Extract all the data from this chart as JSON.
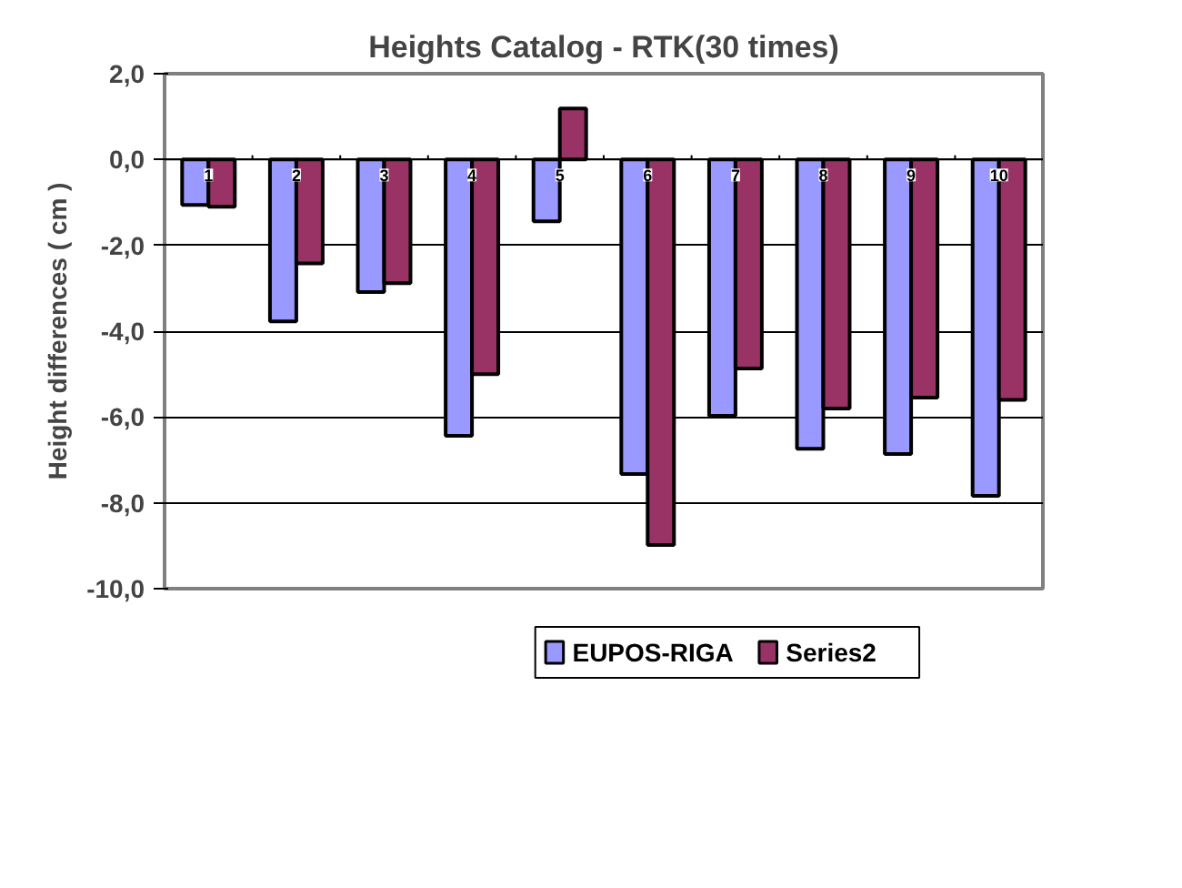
{
  "chart_data": {
    "type": "bar",
    "title": "Heights Catalog - RTK(30 times)",
    "ylabel": "Height differences ( cm )",
    "categories": [
      "1",
      "2",
      "3",
      "4",
      "5",
      "6",
      "7",
      "8",
      "9",
      "10"
    ],
    "series": [
      {
        "name": "EUPOS-RIGA",
        "color": "#9999ff",
        "values": [
          -1.06,
          -3.77,
          -3.09,
          -6.44,
          -1.44,
          -7.33,
          -5.97,
          -6.74,
          -6.86,
          -7.84
        ]
      },
      {
        "name": "Series2",
        "color": "#993366",
        "values": [
          -1.1,
          -2.42,
          -2.88,
          -5.0,
          1.19,
          -8.98,
          -4.87,
          -5.8,
          -5.55,
          -5.6
        ]
      }
    ],
    "ylim": [
      -10,
      2
    ],
    "yticks": [
      {
        "value": -10,
        "label": "-10,0"
      },
      {
        "value": -8,
        "label": "-8,0"
      },
      {
        "value": -6,
        "label": "-6,0"
      },
      {
        "value": -4,
        "label": "-4,0"
      },
      {
        "value": -2,
        "label": "-2,0"
      },
      {
        "value": 0,
        "label": "0,0"
      },
      {
        "value": 2,
        "label": "2,0"
      }
    ],
    "grid": "y",
    "legend": "bottom"
  }
}
